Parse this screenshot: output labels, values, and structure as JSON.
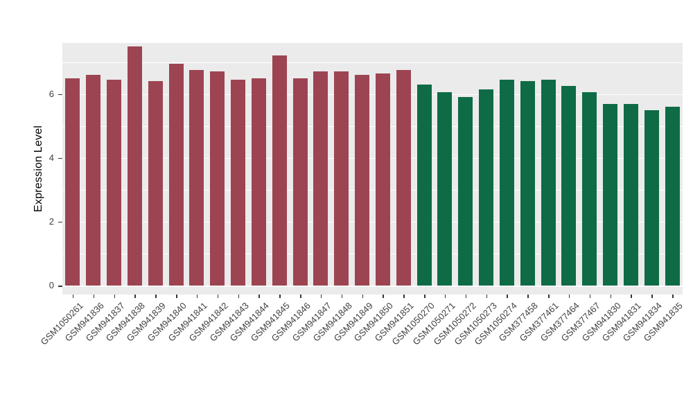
{
  "figure": {
    "background": "#FFFFFF"
  },
  "chart_data": {
    "type": "bar",
    "title": "",
    "xlabel": "",
    "ylabel": "Expression Level",
    "ylim": [
      0,
      7.6
    ],
    "yticks": [
      0,
      2,
      4,
      6
    ],
    "minor_yticks": [
      1,
      3,
      5,
      7
    ],
    "grid": "on",
    "legend_position": "none",
    "panel_background": "#EBEBEB",
    "gridline_color": "#FFFFFF",
    "axis_text_color": "#404040",
    "categories": [
      "GSM1050261",
      "GSM941836",
      "GSM941837",
      "GSM941838",
      "GSM941839",
      "GSM941840",
      "GSM941841",
      "GSM941842",
      "GSM941843",
      "GSM941844",
      "GSM941845",
      "GSM941846",
      "GSM941847",
      "GSM941848",
      "GSM941849",
      "GSM941850",
      "GSM941851",
      "GSM1050270",
      "GSM1050271",
      "GSM1050272",
      "GSM1050273",
      "GSM1050274",
      "GSM377458",
      "GSM377461",
      "GSM377464",
      "GSM377467",
      "GSM941830",
      "GSM941831",
      "GSM941834",
      "GSM941835"
    ],
    "values": [
      6.5,
      6.6,
      6.45,
      7.5,
      6.4,
      6.95,
      6.75,
      6.7,
      6.45,
      6.5,
      7.2,
      6.5,
      6.7,
      6.7,
      6.6,
      6.65,
      6.75,
      6.3,
      6.05,
      5.9,
      6.15,
      6.45,
      6.4,
      6.45,
      6.25,
      6.05,
      5.7,
      5.7,
      5.5,
      5.6
    ],
    "groups": [
      "maroon",
      "maroon",
      "maroon",
      "maroon",
      "maroon",
      "maroon",
      "maroon",
      "maroon",
      "maroon",
      "maroon",
      "maroon",
      "maroon",
      "maroon",
      "maroon",
      "maroon",
      "maroon",
      "maroon",
      "green",
      "green",
      "green",
      "green",
      "green",
      "green",
      "green",
      "green",
      "green",
      "green",
      "green",
      "green",
      "green"
    ],
    "group_colors": {
      "maroon": "#9D4452",
      "green": "#0E6B46"
    }
  }
}
